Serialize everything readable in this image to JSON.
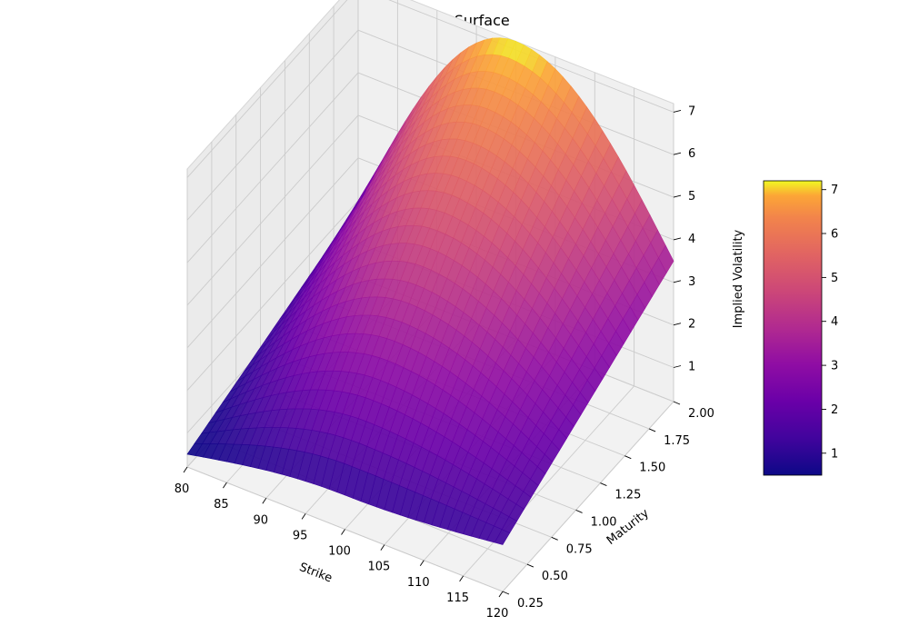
{
  "chart_data": {
    "type": "surface",
    "title": "Spline Volatility Surface",
    "xlabel": "Strike",
    "ylabel": "Maturity",
    "zlabel": "Implied Volatility",
    "xlim": [
      80,
      120
    ],
    "ylim": [
      0.25,
      2.0
    ],
    "zlim": [
      0.2,
      7.2
    ],
    "x_ticks": [
      "80",
      "85",
      "90",
      "95",
      "100",
      "105",
      "110",
      "115",
      "120"
    ],
    "y_ticks": [
      "0.25",
      "0.50",
      "0.75",
      "1.00",
      "1.25",
      "1.50",
      "1.75",
      "2.00"
    ],
    "z_ticks": [
      "1",
      "2",
      "3",
      "4",
      "5",
      "6",
      "7"
    ],
    "colormap": "plasma",
    "colorbar": {
      "range": [
        0.5,
        7.2
      ],
      "ticks": [
        "1",
        "2",
        "3",
        "4",
        "5",
        "6",
        "7"
      ]
    },
    "grid": true,
    "surface": {
      "description_of_values": "implied volatility as a function of strike and maturity",
      "corner_values": {
        "strike_80_maturity_0.25": 0.5,
        "strike_80_maturity_2.00": 1.9,
        "strike_120_maturity_0.25": 1.3,
        "strike_120_maturity_2.00": 3.5
      },
      "peak": {
        "strike": 100,
        "maturity": 2.0,
        "value": 7.2
      },
      "ridge_near_strike": 100
    }
  }
}
